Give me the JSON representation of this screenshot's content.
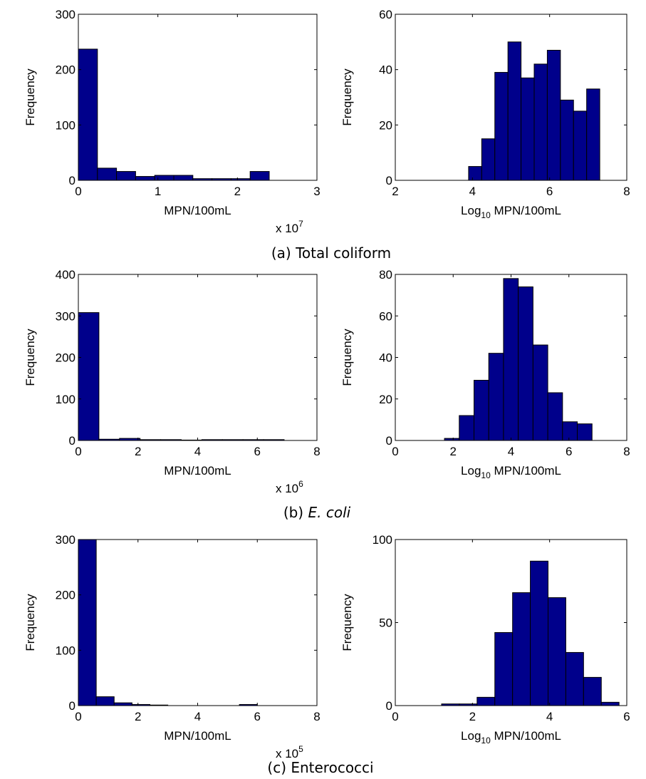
{
  "captions": [
    {
      "prefix": "(a) Total coliform",
      "italic": ""
    },
    {
      "prefix": "(b) ",
      "italic": "E. coli"
    },
    {
      "prefix": "(c) Enterococci",
      "italic": ""
    }
  ],
  "chart_data": [
    {
      "type": "bar",
      "row": 0,
      "col": 0,
      "xlabel": "MPN/100mL",
      "ylabel": "Frequency",
      "exponent_base": "x 10",
      "exponent_power": "7",
      "xlim": [
        0,
        3
      ],
      "ylim": [
        0,
        300
      ],
      "xticks": [
        0,
        1,
        2,
        3
      ],
      "yticks": [
        0,
        100,
        200,
        300
      ],
      "bin_edges": [
        0,
        0.24,
        0.48,
        0.72,
        0.96,
        1.2,
        1.44,
        1.68,
        1.92,
        2.16,
        2.4
      ],
      "values": [
        237,
        22,
        16,
        7,
        9,
        9,
        3,
        3,
        3,
        16
      ]
    },
    {
      "type": "bar",
      "row": 0,
      "col": 1,
      "xlabel_main": "Log",
      "xlabel_sub": "10",
      "xlabel_rest": " MPN/100mL",
      "ylabel": "Frequency",
      "xlim": [
        2,
        8
      ],
      "ylim": [
        0,
        60
      ],
      "xticks": [
        2,
        4,
        6,
        8
      ],
      "yticks": [
        0,
        20,
        40,
        60
      ],
      "bin_edges": [
        3.9,
        4.24,
        4.58,
        4.92,
        5.26,
        5.6,
        5.94,
        6.28,
        6.62,
        6.96,
        7.3
      ],
      "values": [
        5,
        15,
        39,
        50,
        37,
        42,
        47,
        29,
        25,
        33
      ]
    },
    {
      "type": "bar",
      "row": 1,
      "col": 0,
      "xlabel": "MPN/100mL",
      "ylabel": "Frequency",
      "exponent_base": "x 10",
      "exponent_power": "6",
      "xlim": [
        0,
        8
      ],
      "ylim": [
        0,
        400
      ],
      "xticks": [
        0,
        2,
        4,
        6,
        8
      ],
      "yticks": [
        0,
        100,
        200,
        300,
        400
      ],
      "bin_edges": [
        0,
        0.69,
        1.38,
        2.07,
        2.76,
        3.45,
        4.14,
        4.83,
        5.52,
        6.21,
        6.9
      ],
      "values": [
        308,
        3,
        5,
        2,
        2,
        1,
        2,
        2,
        2,
        2
      ]
    },
    {
      "type": "bar",
      "row": 1,
      "col": 1,
      "xlabel_main": "Log",
      "xlabel_sub": "10",
      "xlabel_rest": " MPN/100mL",
      "ylabel": "Frequency",
      "xlim": [
        0,
        8
      ],
      "ylim": [
        0,
        80
      ],
      "xticks": [
        0,
        2,
        4,
        6,
        8
      ],
      "yticks": [
        0,
        20,
        40,
        60,
        80
      ],
      "bin_edges": [
        1.7,
        2.21,
        2.72,
        3.23,
        3.74,
        4.25,
        4.76,
        5.27,
        5.78,
        6.29,
        6.8
      ],
      "values": [
        1,
        12,
        29,
        42,
        78,
        74,
        46,
        23,
        9,
        8
      ]
    },
    {
      "type": "bar",
      "row": 2,
      "col": 0,
      "xlabel": "MPN/100mL",
      "ylabel": "Frequency",
      "exponent_base": "x 10",
      "exponent_power": "5",
      "xlim": [
        0,
        8
      ],
      "ylim": [
        0,
        300
      ],
      "xticks": [
        0,
        2,
        4,
        6,
        8
      ],
      "yticks": [
        0,
        100,
        200,
        300
      ],
      "bin_edges": [
        0,
        0.6,
        1.2,
        1.8,
        2.4,
        3.0,
        3.6,
        4.2,
        4.8,
        5.4,
        6.0
      ],
      "values": [
        310,
        16,
        5,
        2,
        1,
        0,
        0,
        0,
        0,
        2
      ]
    },
    {
      "type": "bar",
      "row": 2,
      "col": 1,
      "xlabel_main": "Log",
      "xlabel_sub": "10",
      "xlabel_rest": " MPN/100mL",
      "ylabel": "Frequency",
      "xlim": [
        0,
        6
      ],
      "ylim": [
        0,
        100
      ],
      "xticks": [
        0,
        2,
        4,
        6
      ],
      "yticks": [
        0,
        50,
        100
      ],
      "bin_edges": [
        1.2,
        1.66,
        2.12,
        2.58,
        3.04,
        3.5,
        3.96,
        4.42,
        4.88,
        5.34,
        5.8
      ],
      "values": [
        1,
        1,
        5,
        44,
        68,
        87,
        65,
        32,
        17,
        2
      ]
    }
  ]
}
